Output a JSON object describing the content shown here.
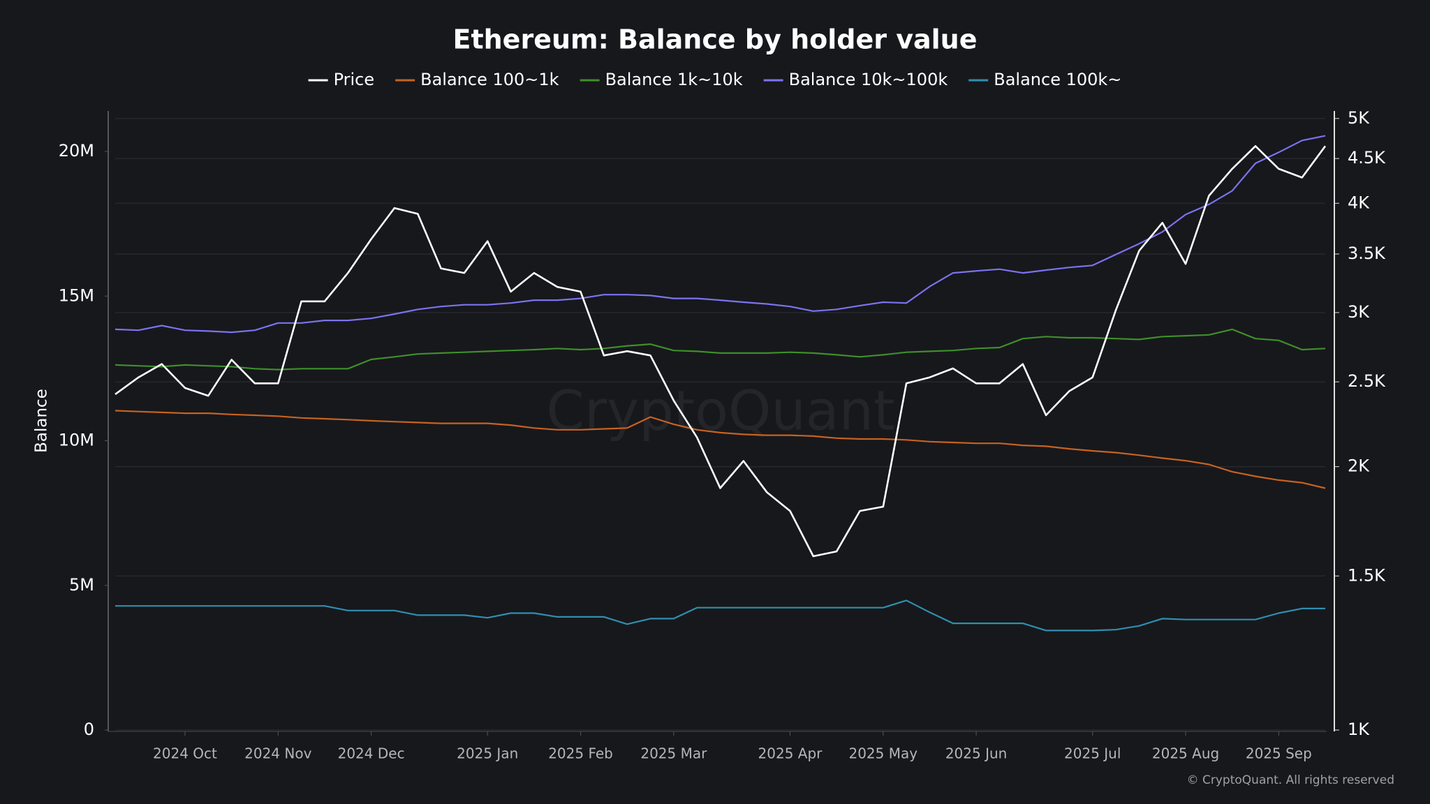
{
  "chart_data": {
    "type": "line",
    "title": "Ethereum: Balance by holder value",
    "y_label": "Balance",
    "watermark": "CryptoQuant",
    "source": "© CryptoQuant. All rights reserved",
    "grid": true,
    "grid_axis": "y2",
    "legend": "top",
    "y2scale": "log",
    "categories": [
      null,
      null,
      null,
      "2024 Oct",
      null,
      null,
      null,
      "2024 Nov",
      null,
      null,
      null,
      "2024 Dec",
      null,
      null,
      null,
      null,
      "2025 Jan",
      null,
      null,
      null,
      "2025 Feb",
      null,
      null,
      null,
      "2025 Mar",
      null,
      null,
      null,
      null,
      "2025 Apr",
      null,
      null,
      null,
      "2025 May",
      null,
      null,
      null,
      "2025 Jun",
      null,
      null,
      null,
      null,
      "2025 Jul",
      null,
      null,
      null,
      "2025 Aug",
      null,
      null,
      null,
      "2025 Sep",
      null,
      null
    ],
    "ylim": [
      0,
      21400000
    ],
    "yticks": [
      0,
      {
        "value": 5000000,
        "label": "5M"
      },
      {
        "value": 10000000,
        "label": "10M"
      },
      {
        "value": 15000000,
        "label": "15M"
      },
      {
        "value": 20000000,
        "label": "20M"
      }
    ],
    "y2lim": [
      1000,
      5100
    ],
    "y2ticks": [
      {
        "value": 1000,
        "label": "1K"
      },
      {
        "value": 1500,
        "label": "1.5K"
      },
      {
        "value": 2000,
        "label": "2K"
      },
      {
        "value": 2500,
        "label": "2.5K"
      },
      {
        "value": 3000,
        "label": "3K"
      },
      {
        "value": 3500,
        "label": "3.5K"
      },
      {
        "value": 4000,
        "label": "4K"
      },
      {
        "value": 4500,
        "label": "4.5K"
      },
      {
        "value": 5000,
        "label": "5K"
      }
    ],
    "series": [
      {
        "name": "Price",
        "color": "#ffffff",
        "axis": "y2",
        "values": [
          2420,
          2530,
          2620,
          2460,
          2410,
          2650,
          2490,
          2490,
          3090,
          3090,
          3330,
          3640,
          3950,
          3890,
          3370,
          3330,
          3620,
          3170,
          3330,
          3210,
          3170,
          2680,
          2710,
          2680,
          2380,
          2160,
          1890,
          2030,
          1870,
          1780,
          1580,
          1600,
          1780,
          1800,
          2490,
          2530,
          2590,
          2490,
          2490,
          2620,
          2290,
          2440,
          2530,
          3020,
          3530,
          3800,
          3410,
          4080,
          4380,
          4650,
          4380,
          4280,
          4650
        ]
      },
      {
        "name": "Balance 100~1k",
        "color": "#c8621f",
        "values": [
          11040000,
          11010000,
          10980000,
          10950000,
          10950000,
          10910000,
          10880000,
          10850000,
          10790000,
          10760000,
          10730000,
          10690000,
          10660000,
          10630000,
          10600000,
          10600000,
          10600000,
          10540000,
          10440000,
          10380000,
          10380000,
          10410000,
          10440000,
          10820000,
          10570000,
          10380000,
          10280000,
          10220000,
          10190000,
          10190000,
          10160000,
          10090000,
          10060000,
          10060000,
          10030000,
          9970000,
          9940000,
          9910000,
          9910000,
          9840000,
          9810000,
          9720000,
          9650000,
          9590000,
          9500000,
          9400000,
          9310000,
          9180000,
          8930000,
          8770000,
          8640000,
          8550000,
          8360000
        ]
      },
      {
        "name": "Balance 1k~10k",
        "color": "#3f8f2a",
        "values": [
          12620000,
          12590000,
          12560000,
          12620000,
          12590000,
          12560000,
          12490000,
          12460000,
          12490000,
          12490000,
          12490000,
          12810000,
          12900000,
          13000000,
          13030000,
          13060000,
          13090000,
          13120000,
          13150000,
          13190000,
          13150000,
          13190000,
          13280000,
          13340000,
          13120000,
          13090000,
          13030000,
          13030000,
          13030000,
          13060000,
          13030000,
          12970000,
          12900000,
          12970000,
          13060000,
          13090000,
          13120000,
          13190000,
          13220000,
          13530000,
          13600000,
          13560000,
          13560000,
          13530000,
          13500000,
          13600000,
          13630000,
          13660000,
          13850000,
          13530000,
          13470000,
          13150000,
          13190000
        ]
      },
      {
        "name": "Balance 10k~100k",
        "color": "#7b73f0",
        "values": [
          13850000,
          13820000,
          13980000,
          13820000,
          13790000,
          13750000,
          13820000,
          14070000,
          14070000,
          14160000,
          14160000,
          14230000,
          14380000,
          14540000,
          14640000,
          14700000,
          14700000,
          14760000,
          14860000,
          14860000,
          14920000,
          15050000,
          15050000,
          15020000,
          14920000,
          14920000,
          14860000,
          14790000,
          14730000,
          14640000,
          14480000,
          14540000,
          14670000,
          14790000,
          14760000,
          15330000,
          15800000,
          15870000,
          15930000,
          15800000,
          15900000,
          15990000,
          16060000,
          16440000,
          16810000,
          17220000,
          17820000,
          18170000,
          18640000,
          19590000,
          19970000,
          20380000,
          20540000
        ]
      },
      {
        "name": "Balance 100k~",
        "color": "#2f8fb0",
        "values": [
          4290000,
          4290000,
          4290000,
          4290000,
          4290000,
          4290000,
          4290000,
          4290000,
          4290000,
          4290000,
          4130000,
          4130000,
          4130000,
          3970000,
          3970000,
          3970000,
          3880000,
          4040000,
          4040000,
          3910000,
          3910000,
          3910000,
          3660000,
          3850000,
          3850000,
          4230000,
          4230000,
          4230000,
          4230000,
          4230000,
          4230000,
          4230000,
          4230000,
          4230000,
          4480000,
          4070000,
          3690000,
          3690000,
          3690000,
          3690000,
          3440000,
          3440000,
          3440000,
          3470000,
          3600000,
          3850000,
          3820000,
          3820000,
          3820000,
          3820000,
          4040000,
          4200000,
          4200000
        ]
      }
    ]
  }
}
